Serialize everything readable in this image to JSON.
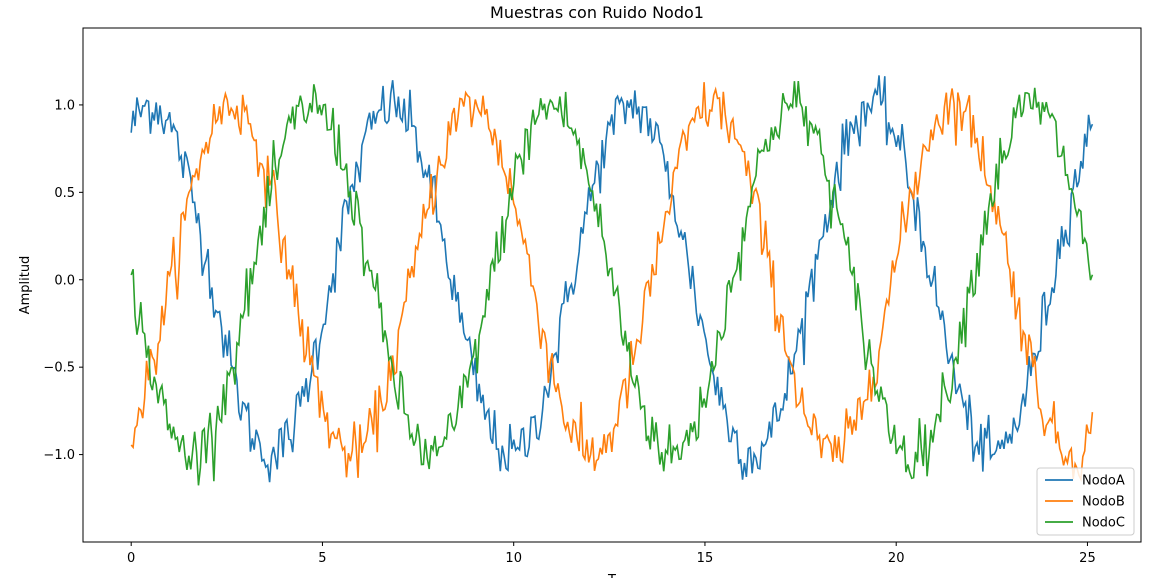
{
  "chart_data": {
    "type": "line",
    "title": "Muestras con Ruido Nodo1",
    "xlabel": "T",
    "ylabel": "Amplitud",
    "xlim": [
      -1.26,
      26.4
    ],
    "ylim": [
      -1.5,
      1.44
    ],
    "xticks": [
      0,
      5,
      10,
      15,
      20,
      25
    ],
    "yticks": [
      -1.0,
      -0.5,
      0.0,
      0.5,
      1.0
    ],
    "ytick_labels": [
      "−1.0",
      "−0.5",
      "0.0",
      "0.5",
      "1.0"
    ],
    "grid": false,
    "legend_position": "lower-right",
    "x_range": [
      0,
      25.13
    ],
    "sample_period": 6.283,
    "series": [
      {
        "name": "NodoA",
        "color": "#1f77b4",
        "amplitude": 1.0,
        "phase_deg": 60,
        "noise": 0.08
      },
      {
        "name": "NodoB",
        "color": "#ff7f0e",
        "amplitude": 1.0,
        "phase_deg": -60,
        "noise": 0.08
      },
      {
        "name": "NodoC",
        "color": "#2ca02c",
        "amplitude": 1.0,
        "phase_deg": 180,
        "noise": 0.08
      }
    ]
  }
}
